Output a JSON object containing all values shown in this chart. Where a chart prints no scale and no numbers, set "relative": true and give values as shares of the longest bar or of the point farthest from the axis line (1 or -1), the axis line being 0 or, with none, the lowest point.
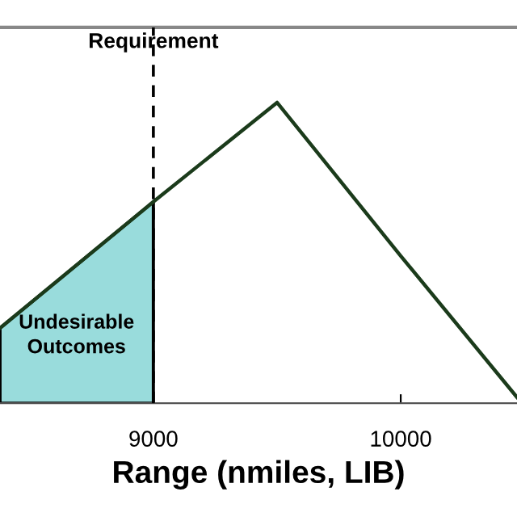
{
  "chart_data": {
    "type": "line",
    "relative": true,
    "xlabel": "Range (nmiles, LIB)",
    "xlim": [
      8380,
      10470
    ],
    "xticks": [
      9000,
      10000
    ],
    "tick_labels": "x",
    "grid": false,
    "legend": false,
    "series": [
      {
        "type": "area",
        "color": "#99dcdc",
        "x": [
          8380,
          9000
        ],
        "values": [
          0.25,
          0.67
        ]
      },
      {
        "color": "#1b3b1b",
        "x": [
          8380,
          9000,
          9500,
          10000,
          10470
        ],
        "values": [
          0.25,
          0.67,
          1.0,
          0.49,
          0.02
        ]
      }
    ],
    "ref_lines": [
      {
        "axis": "x",
        "value": 9000,
        "label": "Requirement",
        "line_style": "dashed",
        "color": "#000000"
      }
    ],
    "annotations": [
      "Undesirable\nOutcomes"
    ]
  }
}
